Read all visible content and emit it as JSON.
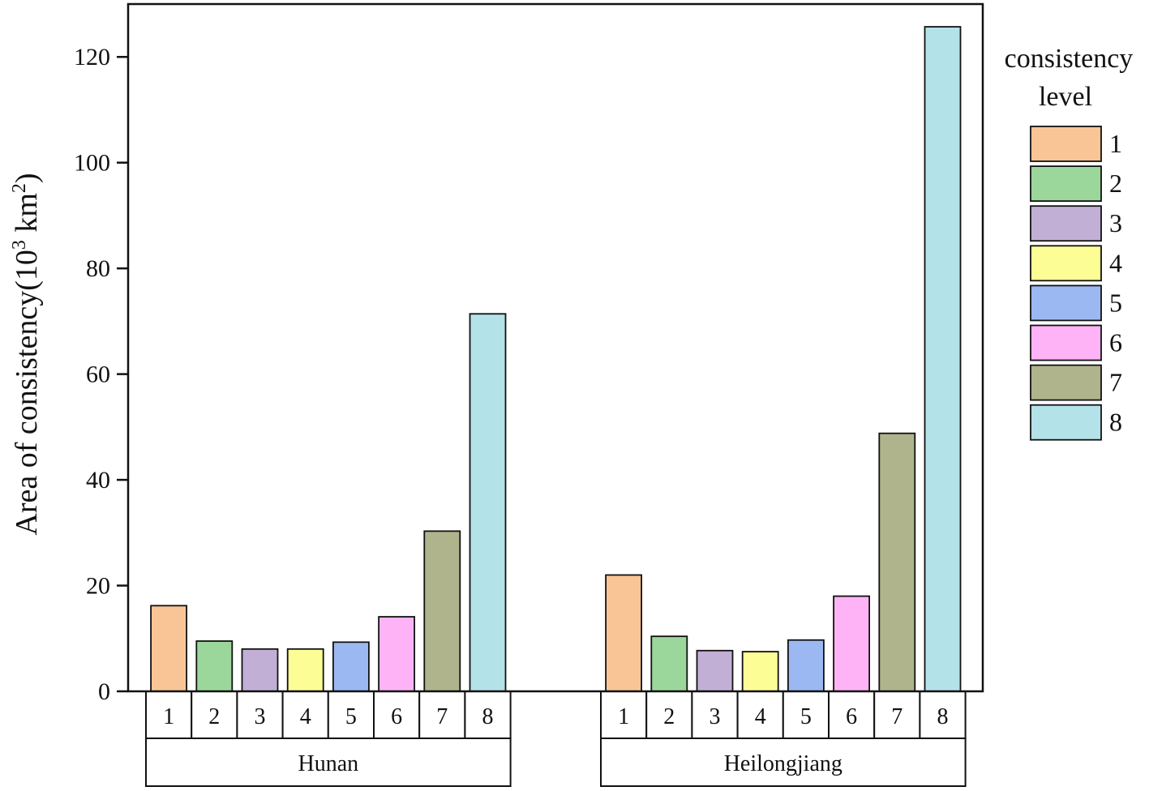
{
  "chart_data": {
    "type": "bar",
    "ylabel": "Area of consistency(10",
    "ylabel_sup": "3",
    "ylabel_unit": " km",
    "ylabel_unit_sup": "2",
    "ylabel_close": ")",
    "ylim": [
      0,
      130
    ],
    "yticks": [
      0,
      20,
      40,
      60,
      80,
      100,
      120
    ],
    "categories": [
      "1",
      "2",
      "3",
      "4",
      "5",
      "6",
      "7",
      "8"
    ],
    "groups": [
      {
        "name": "Hunan",
        "values": [
          16.2,
          9.5,
          8.0,
          8.0,
          9.3,
          14.1,
          30.3,
          71.4
        ]
      },
      {
        "name": "Heilongjiang",
        "values": [
          22.0,
          10.4,
          7.7,
          7.5,
          9.7,
          18.0,
          48.8,
          125.7
        ]
      }
    ],
    "legend": {
      "title_line1": "consistency",
      "title_line2": "level",
      "placement": "right",
      "entries": [
        "1",
        "2",
        "3",
        "4",
        "5",
        "6",
        "7",
        "8"
      ]
    },
    "colors": [
      "#f9c596",
      "#9bd79b",
      "#c2afd6",
      "#fdfd96",
      "#9bb8f2",
      "#fdb3f5",
      "#b0b48c",
      "#b3e2e8"
    ],
    "grid": false
  }
}
